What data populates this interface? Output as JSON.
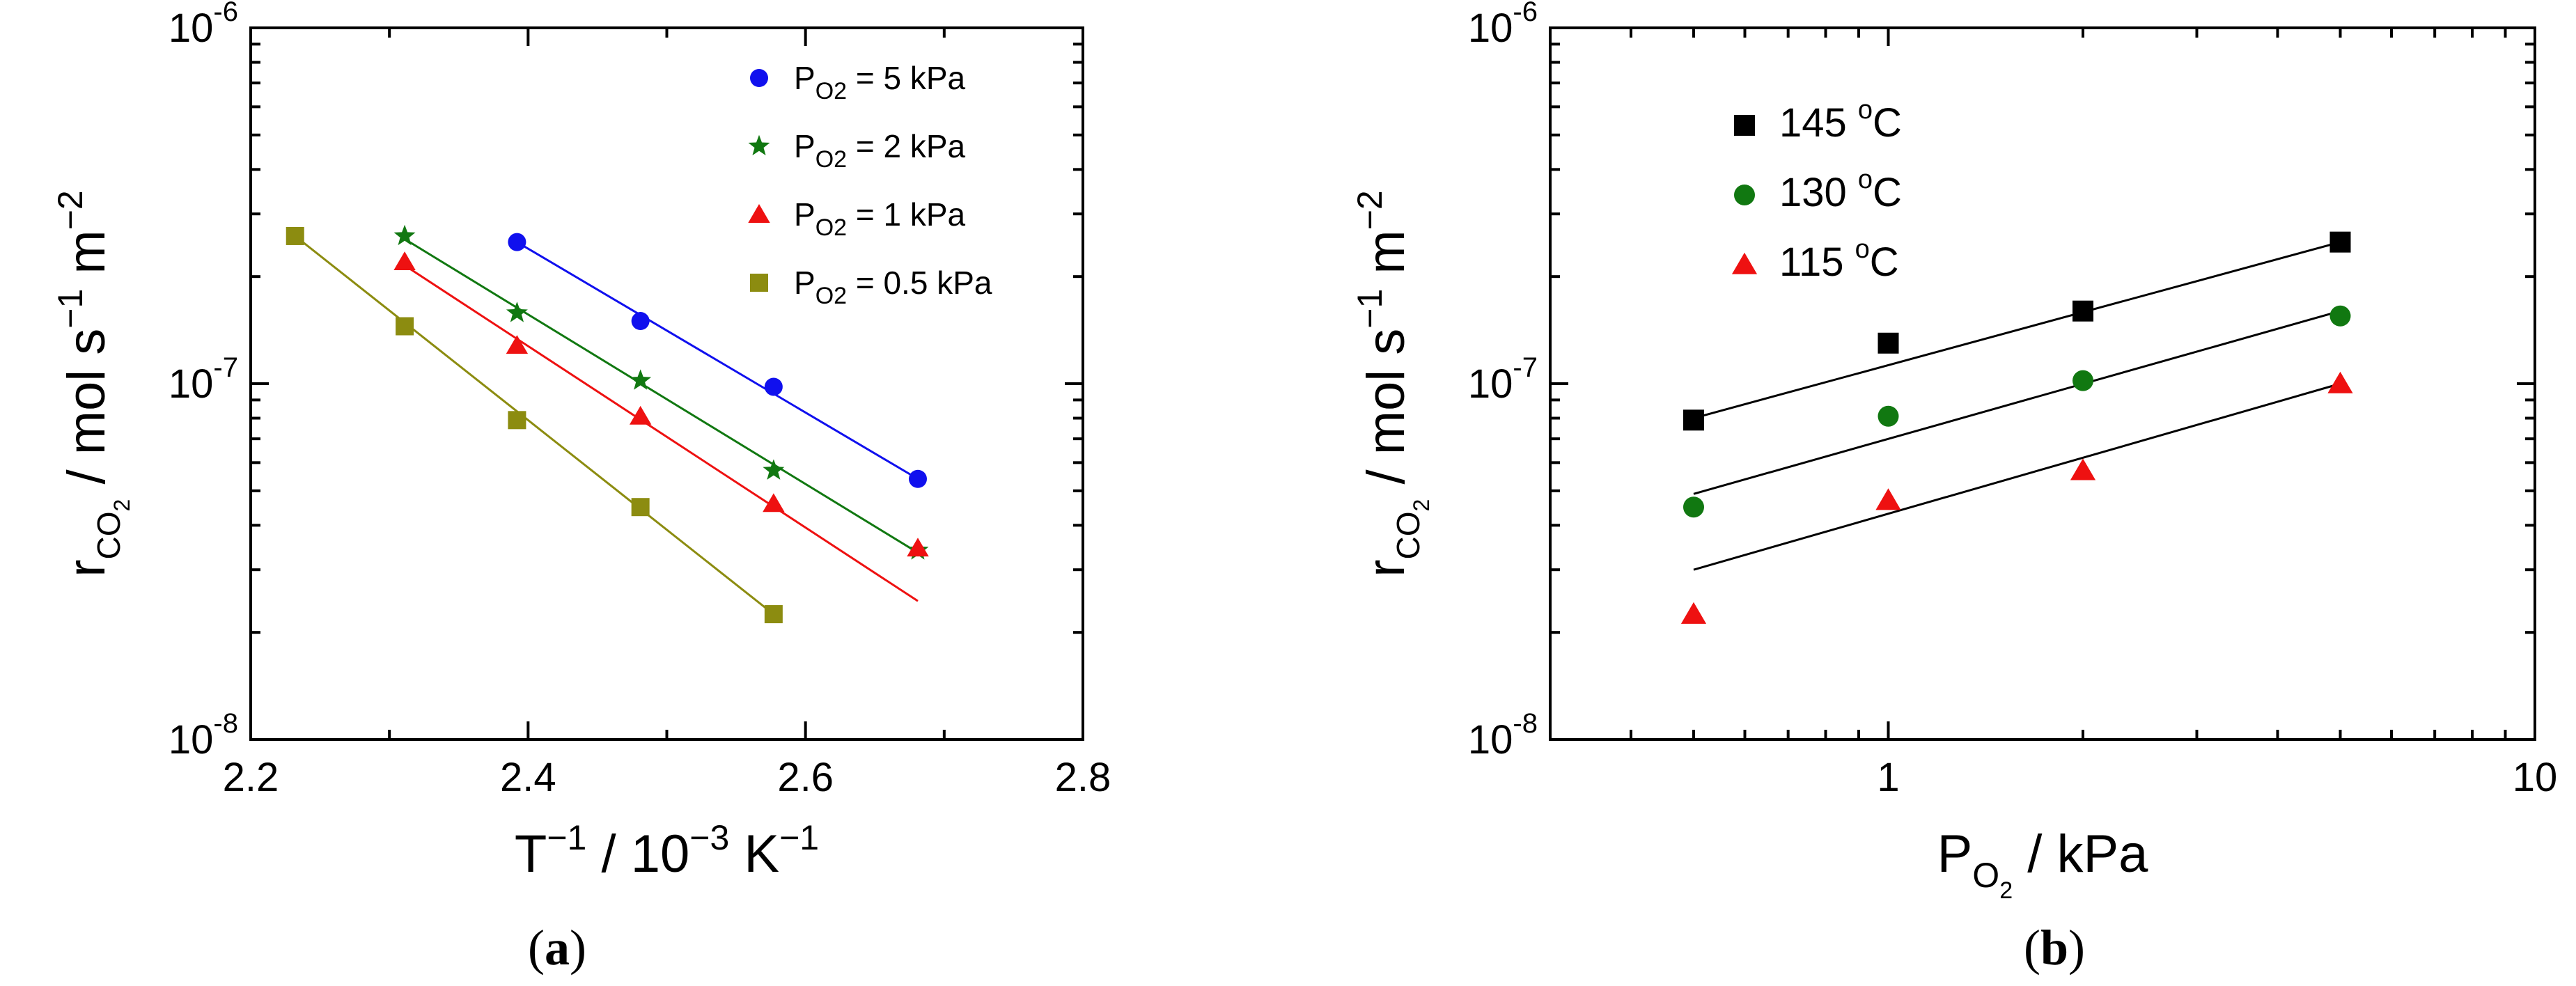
{
  "chart_data": [
    {
      "type": "scatter",
      "panel_label": "a",
      "x_scale": "linear",
      "y_scale": "log",
      "xlim": [
        2.2,
        2.8
      ],
      "ylim": [
        1e-08,
        1e-06
      ],
      "x_ticks": [
        2.2,
        2.4,
        2.6,
        2.8
      ],
      "x_tick_labels": [
        "2.2",
        "2.4",
        "2.6",
        "2.8"
      ],
      "y_ticks": [
        1e-08,
        1e-07,
        1e-06
      ],
      "y_tick_labels": [
        {
          "base": "10",
          "exp": "-8"
        },
        {
          "base": "10",
          "exp": "-7"
        },
        {
          "base": "10",
          "exp": "-6"
        }
      ],
      "xlabel": {
        "main": "T",
        "sup": "−1",
        "rest": " / 10",
        "sup2": "−3",
        "rest2": " K",
        "sup3": "−1"
      },
      "ylabel": {
        "main": "r",
        "sub": "CO",
        "subsub": "2",
        "rest": " / mol s",
        "sup": "−1",
        "rest2": " m",
        "sup2": "−2"
      },
      "legend_position": "top-right",
      "series": [
        {
          "name": "P",
          "sub": "O2",
          "label": " = 5 kPa",
          "color": "#1010ee",
          "marker": "circle",
          "x": [
            2.392,
            2.481,
            2.577,
            2.681
          ],
          "y": [
            2.5e-07,
            1.5e-07,
            9.8e-08,
            5.4e-08
          ],
          "fit": {
            "x": [
              2.392,
              2.681
            ],
            "y": [
              2.5e-07,
              5.4e-08
            ]
          }
        },
        {
          "name": "P",
          "sub": "O2",
          "label": " = 2 kPa",
          "color": "#117811",
          "marker": "star",
          "x": [
            2.311,
            2.392,
            2.481,
            2.577,
            2.681
          ],
          "y": [
            2.6e-07,
            1.58e-07,
            1.02e-07,
            5.7e-08,
            3.4e-08
          ],
          "fit": {
            "x": [
              2.311,
              2.681
            ],
            "y": [
              2.55e-07,
              3.35e-08
            ]
          }
        },
        {
          "name": "P",
          "sub": "O2",
          "label": " = 1 kPa",
          "color": "#ee1111",
          "marker": "triangle",
          "x": [
            2.311,
            2.392,
            2.481,
            2.577,
            2.681
          ],
          "y": [
            2.2e-07,
            1.28e-07,
            8.1e-08,
            4.6e-08,
            3.45e-08
          ],
          "fit": {
            "x": [
              2.311,
              2.681
            ],
            "y": [
              2.15e-07,
              2.45e-08
            ]
          }
        },
        {
          "name": "P",
          "sub": "O2",
          "label": " = 0.5 kPa",
          "color": "#8c8c10",
          "marker": "square",
          "x": [
            2.232,
            2.311,
            2.392,
            2.481,
            2.577
          ],
          "y": [
            2.6e-07,
            1.45e-07,
            7.9e-08,
            4.5e-08,
            2.25e-08
          ],
          "fit": {
            "x": [
              2.232,
              2.577
            ],
            "y": [
              2.6e-07,
              2.25e-08
            ]
          }
        }
      ]
    },
    {
      "type": "scatter",
      "panel_label": "b",
      "x_scale": "log",
      "y_scale": "log",
      "xlim": [
        0.3,
        10
      ],
      "ylim": [
        1e-08,
        1e-06
      ],
      "x_ticks": [
        1,
        10
      ],
      "x_tick_labels": [
        "1",
        "10"
      ],
      "y_ticks": [
        1e-08,
        1e-07,
        1e-06
      ],
      "y_tick_labels": [
        {
          "base": "10",
          "exp": "-8"
        },
        {
          "base": "10",
          "exp": "-7"
        },
        {
          "base": "10",
          "exp": "-6"
        }
      ],
      "xlabel": {
        "main": "P",
        "sub": "O",
        "subsub": "2",
        "rest": " / kPa"
      },
      "ylabel": {
        "main": "r",
        "sub": "CO",
        "subsub": "2",
        "rest": " / mol s",
        "sup": "−1",
        "rest2": " m",
        "sup2": "−2"
      },
      "legend_position": "top-left",
      "series": [
        {
          "name": "145 ",
          "sup": "o",
          "label": "C",
          "color": "#000000",
          "marker": "square",
          "x": [
            0.5,
            1,
            2,
            5
          ],
          "y": [
            7.9e-08,
            1.3e-07,
            1.6e-07,
            2.5e-07
          ],
          "fit": {
            "x": [
              0.5,
              5
            ],
            "y": [
              8e-08,
              2.5e-07
            ]
          }
        },
        {
          "name": "130 ",
          "sup": "o",
          "label": "C",
          "color": "#117811",
          "marker": "circle",
          "x": [
            0.5,
            1,
            2,
            5
          ],
          "y": [
            4.5e-08,
            8.1e-08,
            1.02e-07,
            1.55e-07
          ],
          "fit": {
            "x": [
              0.5,
              5
            ],
            "y": [
              4.9e-08,
              1.6e-07
            ]
          }
        },
        {
          "name": "115 ",
          "sup": "o",
          "label": "C",
          "color": "#ee1111",
          "marker": "triangle",
          "x": [
            0.5,
            1,
            2,
            5
          ],
          "y": [
            2.25e-08,
            4.7e-08,
            5.7e-08,
            1e-07
          ],
          "fit": {
            "x": [
              0.5,
              5
            ],
            "y": [
              3e-08,
              1e-07
            ]
          }
        }
      ]
    }
  ]
}
